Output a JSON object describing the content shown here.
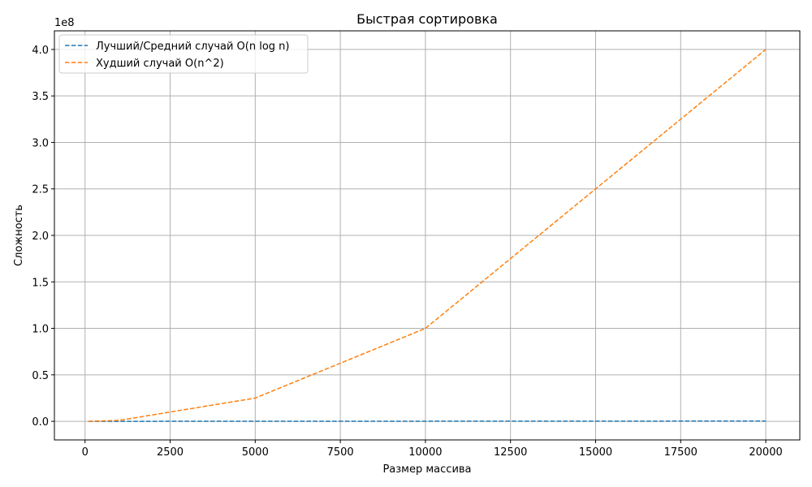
{
  "chart_data": {
    "type": "line",
    "title": "Быстрая сортировка",
    "xlabel": "Размер массива",
    "ylabel": "Сложность",
    "y_offset_label": "1e8",
    "x": [
      100,
      1000,
      5000,
      10000,
      20000
    ],
    "series": [
      {
        "name": "Лучший/Средний случай O(n log n)",
        "color": "#1f77b4",
        "style": "dashed",
        "values": [
          664,
          9966,
          61439,
          132877,
          285754
        ]
      },
      {
        "name": "Худший случай O(n^2)",
        "color": "#ff7f0e",
        "style": "dashed",
        "values": [
          10000,
          1000000,
          25000000,
          100000000,
          400000000
        ]
      }
    ],
    "xlim": [
      -900,
      21000
    ],
    "ylim": [
      -20000000,
      420000000
    ],
    "x_ticks": [
      0,
      2500,
      5000,
      7500,
      10000,
      12500,
      15000,
      17500,
      20000
    ],
    "x_tick_labels": [
      "0",
      "2500",
      "5000",
      "7500",
      "10000",
      "12500",
      "15000",
      "17500",
      "20000"
    ],
    "y_ticks": [
      0,
      50000000,
      100000000,
      150000000,
      200000000,
      250000000,
      300000000,
      350000000,
      400000000
    ],
    "y_tick_labels": [
      "0.0",
      "0.5",
      "1.0",
      "1.5",
      "2.0",
      "2.5",
      "3.0",
      "3.5",
      "4.0"
    ],
    "grid": true,
    "legend_position": "top-left"
  }
}
